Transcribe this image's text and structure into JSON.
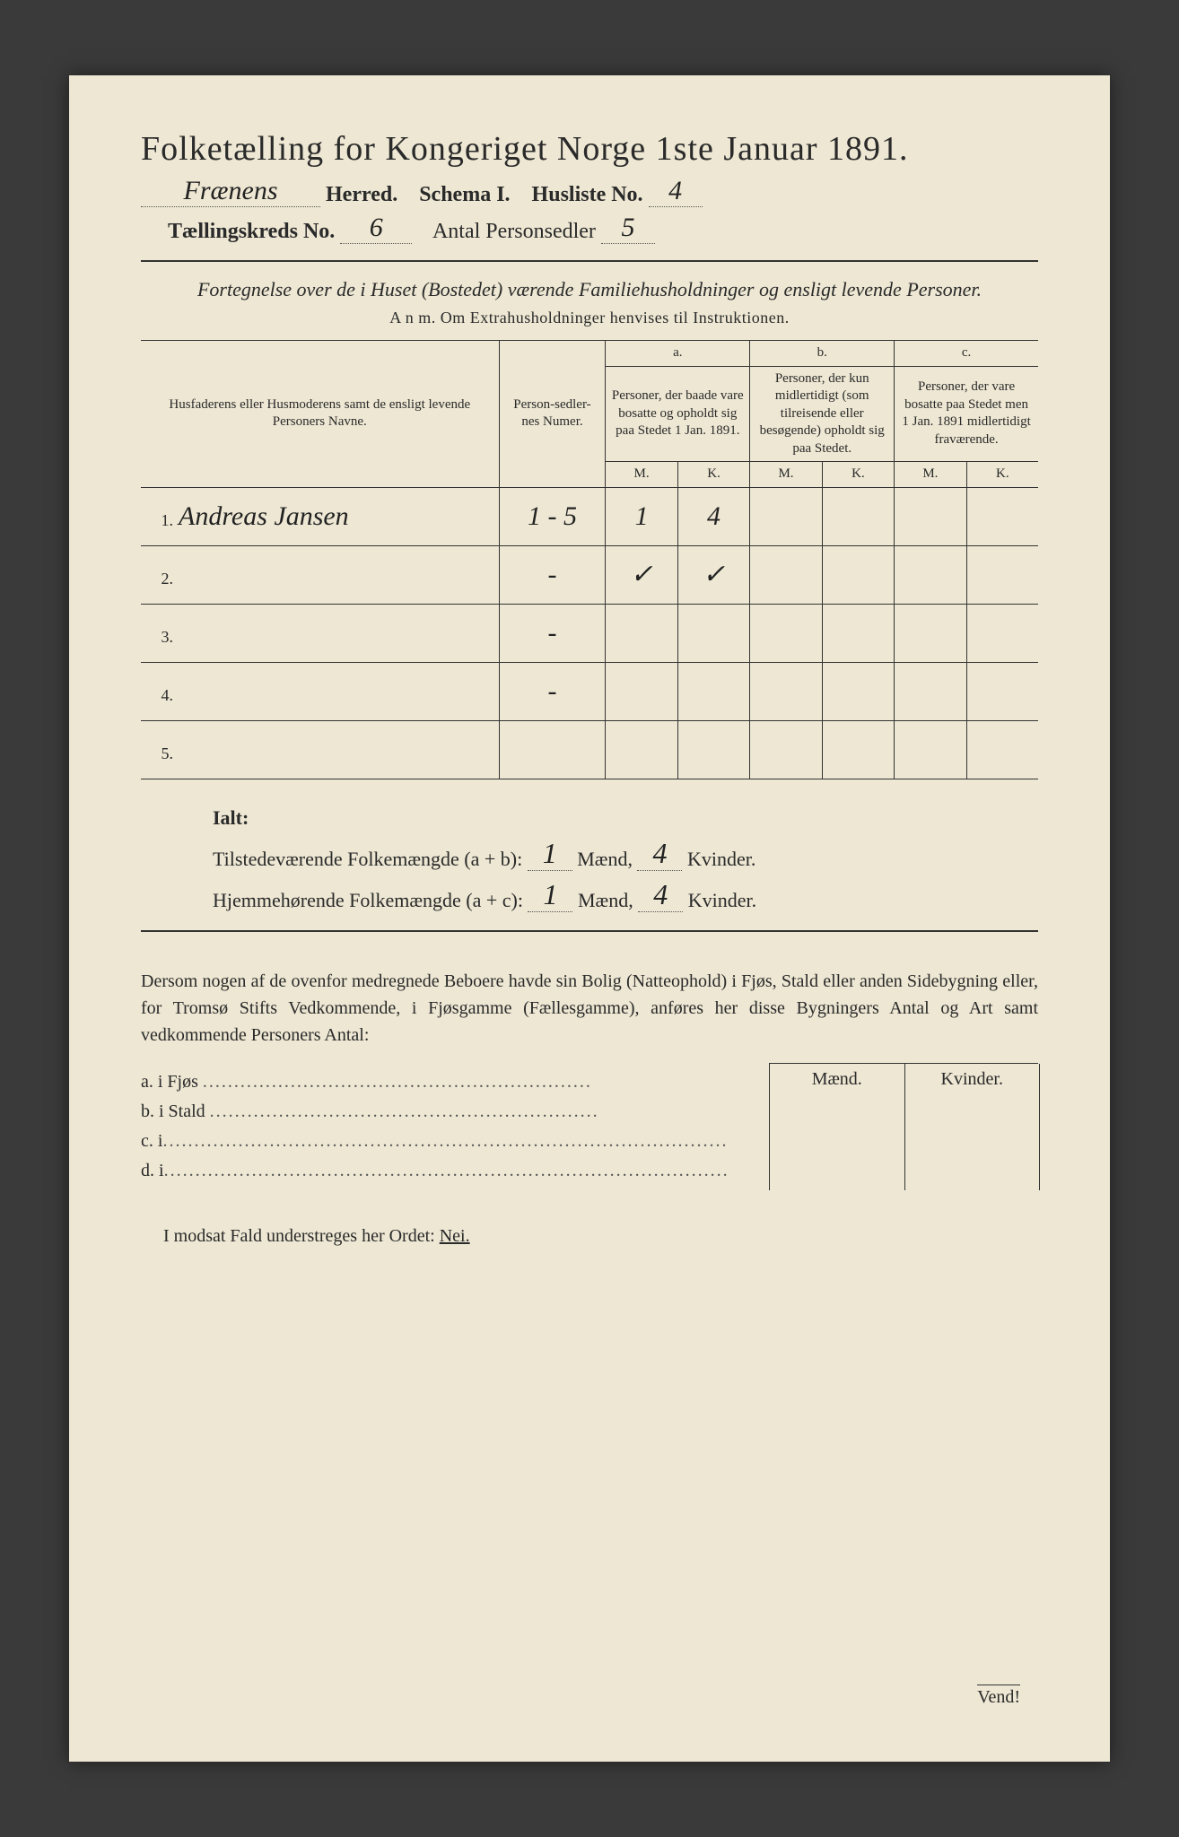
{
  "header": {
    "title": "Folketælling for Kongeriget Norge 1ste Januar 1891.",
    "herred_value": "Frænens",
    "herred_label": "Herred.",
    "schema_label": "Schema I.",
    "husliste_label": "Husliste No.",
    "husliste_value": "4",
    "kreds_label": "Tællingskreds No.",
    "kreds_value": "6",
    "antal_label": "Antal Personsedler",
    "antal_value": "5"
  },
  "subtitle": "Fortegnelse over de i Huset (Bostedet) værende Familiehusholdninger og ensligt levende Personer.",
  "anm": "A n m.  Om Extrahusholdninger henvises til Instruktionen.",
  "table": {
    "col1": "Husfaderens eller Husmoderens samt de ensligt levende Personers Navne.",
    "col2": "Person-sedler-nes Numer.",
    "col_a_top": "a.",
    "col_a": "Personer, der baade vare bosatte og opholdt sig paa Stedet 1 Jan. 1891.",
    "col_b_top": "b.",
    "col_b": "Personer, der kun midlertidigt (som tilreisende eller besøgende) opholdt sig paa Stedet.",
    "col_c_top": "c.",
    "col_c": "Personer, der vare bosatte paa Stedet men 1 Jan. 1891 midlertidigt fraværende.",
    "mk_m": "M.",
    "mk_k": "K.",
    "rows": [
      {
        "n": "1.",
        "name": "Andreas Jansen",
        "num": "1 - 5",
        "am": "1",
        "ak": "4",
        "bm": "",
        "bk": "",
        "cm": "",
        "ck": ""
      },
      {
        "n": "2.",
        "name": "",
        "num": "-",
        "am": "✓",
        "ak": "✓",
        "bm": "",
        "bk": "",
        "cm": "",
        "ck": ""
      },
      {
        "n": "3.",
        "name": "",
        "num": "-",
        "am": "",
        "ak": "",
        "bm": "",
        "bk": "",
        "cm": "",
        "ck": ""
      },
      {
        "n": "4.",
        "name": "",
        "num": "-",
        "am": "",
        "ak": "",
        "bm": "",
        "bk": "",
        "cm": "",
        "ck": ""
      },
      {
        "n": "5.",
        "name": "",
        "num": "",
        "am": "",
        "ak": "",
        "bm": "",
        "bk": "",
        "cm": "",
        "ck": ""
      }
    ]
  },
  "totals": {
    "ialt": "Ialt:",
    "line1_label": "Tilstedeværende Folkemængde (a + b):",
    "line2_label": "Hjemmehørende Folkemængde (a + c):",
    "maend": "Mænd,",
    "kvinder": "Kvinder.",
    "l1_m": "1",
    "l1_k": "4",
    "l2_m": "1",
    "l2_k": "4"
  },
  "para": "Dersom nogen af de ovenfor medregnede Beboere havde sin Bolig (Natteophold) i Fjøs, Stald eller anden Sidebygning eller, for Tromsø Stifts Vedkommende, i Fjøsgamme (Fællesgamme), anføres her disse Bygningers Antal og Art samt vedkommende Personers Antal:",
  "side": {
    "maend": "Mænd.",
    "kvinder": "Kvinder.",
    "a": "a.  i      Fjøs",
    "b": "b.  i      Stald",
    "c": "c.  i",
    "d": "d.  i"
  },
  "nei_line_pre": "I modsat Fald understreges her Ordet:",
  "nei": "Nei.",
  "vend": "Vend!"
}
